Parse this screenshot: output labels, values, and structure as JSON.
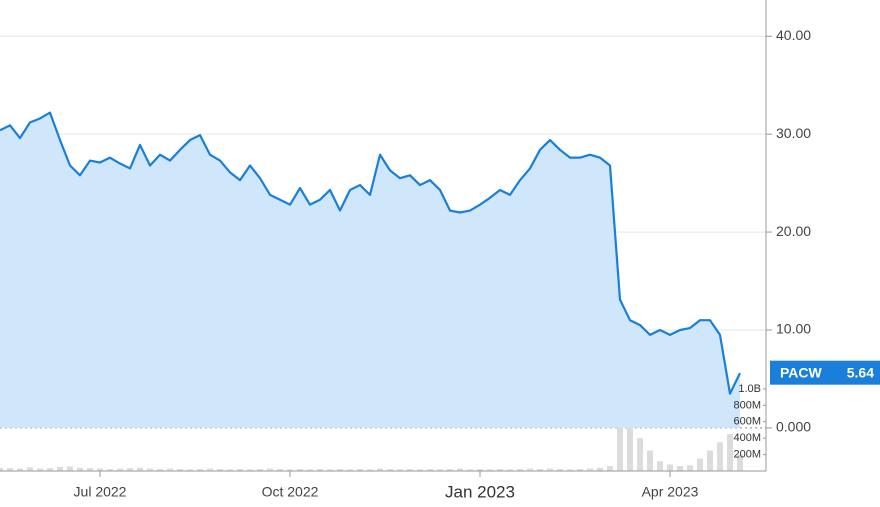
{
  "chart_data": {
    "type": "line",
    "categories": [
      null,
      null,
      null,
      null,
      null,
      null,
      null,
      null,
      null,
      null,
      "Jul 2022",
      null,
      null,
      null,
      null,
      null,
      null,
      null,
      null,
      null,
      null,
      null,
      null,
      null,
      null,
      null,
      null,
      null,
      null,
      "Oct 2022",
      null,
      null,
      null,
      null,
      null,
      null,
      null,
      null,
      null,
      null,
      null,
      null,
      null,
      null,
      null,
      null,
      null,
      null,
      "Jan 2023",
      null,
      null,
      null,
      null,
      null,
      null,
      null,
      null,
      null,
      null,
      null,
      null,
      null,
      null,
      null,
      null,
      null,
      null,
      "Apr 2023",
      null,
      null,
      null,
      null,
      null,
      null,
      null
    ],
    "series": [
      {
        "name": "PACW",
        "color": "#1a7fd9",
        "fill": "#cfe6fb",
        "values": [
          30.4,
          30.9,
          29.6,
          31.2,
          31.6,
          32.2,
          29.4,
          26.8,
          25.8,
          27.3,
          27.1,
          27.6,
          27.0,
          26.5,
          28.9,
          26.8,
          27.9,
          27.3,
          28.4,
          29.4,
          29.9,
          27.9,
          27.3,
          26.1,
          25.3,
          26.8,
          25.5,
          23.8,
          23.3,
          22.8,
          24.5,
          22.8,
          23.3,
          24.3,
          22.2,
          24.3,
          24.8,
          23.8,
          27.9,
          26.3,
          25.5,
          25.8,
          24.8,
          25.3,
          24.3,
          22.2,
          22.0,
          22.2,
          22.8,
          23.5,
          24.3,
          23.8,
          25.3,
          26.5,
          28.4,
          29.4,
          28.4,
          27.6,
          27.6,
          27.9,
          27.6,
          26.8,
          13.1,
          11.0,
          10.5,
          9.5,
          10.0,
          9.5,
          10.0,
          10.2,
          11.0,
          11.0,
          9.5,
          3.5,
          5.6
        ]
      },
      {
        "name": "Volume",
        "color": "#dcdcdc",
        "axis": "y2",
        "values": [
          40000000,
          35000000,
          30000000,
          45000000,
          30000000,
          35000000,
          50000000,
          55000000,
          40000000,
          35000000,
          30000000,
          25000000,
          30000000,
          35000000,
          40000000,
          30000000,
          25000000,
          30000000,
          25000000,
          20000000,
          25000000,
          30000000,
          25000000,
          20000000,
          25000000,
          20000000,
          25000000,
          30000000,
          25000000,
          20000000,
          25000000,
          20000000,
          25000000,
          20000000,
          25000000,
          20000000,
          25000000,
          20000000,
          30000000,
          25000000,
          20000000,
          25000000,
          20000000,
          25000000,
          20000000,
          25000000,
          30000000,
          20000000,
          25000000,
          20000000,
          25000000,
          20000000,
          25000000,
          30000000,
          25000000,
          30000000,
          25000000,
          20000000,
          25000000,
          30000000,
          40000000,
          60000000,
          700000000,
          900000000,
          400000000,
          250000000,
          120000000,
          80000000,
          60000000,
          70000000,
          150000000,
          250000000,
          350000000,
          450000000,
          200000000
        ]
      }
    ],
    "ylim": [
      -4.4,
      43.7
    ],
    "yticks": [
      {
        "value": 0,
        "label": "0.000"
      },
      {
        "value": 10,
        "label": "10.00"
      },
      {
        "value": 20,
        "label": "20.00"
      },
      {
        "value": 30,
        "label": "30.00"
      },
      {
        "value": 40,
        "label": "40.00"
      }
    ],
    "y2lim": [
      0,
      5740000000
    ],
    "y2ticks": [
      {
        "value": 200000000,
        "label": "200M"
      },
      {
        "value": 400000000,
        "label": "400M"
      },
      {
        "value": 600000000,
        "label": "600M"
      },
      {
        "value": 800000000,
        "label": "800M"
      },
      {
        "value": 1000000000,
        "label": "1.0B"
      }
    ],
    "grid": true,
    "last_price": {
      "label": "PACW",
      "value": 5.64
    }
  }
}
